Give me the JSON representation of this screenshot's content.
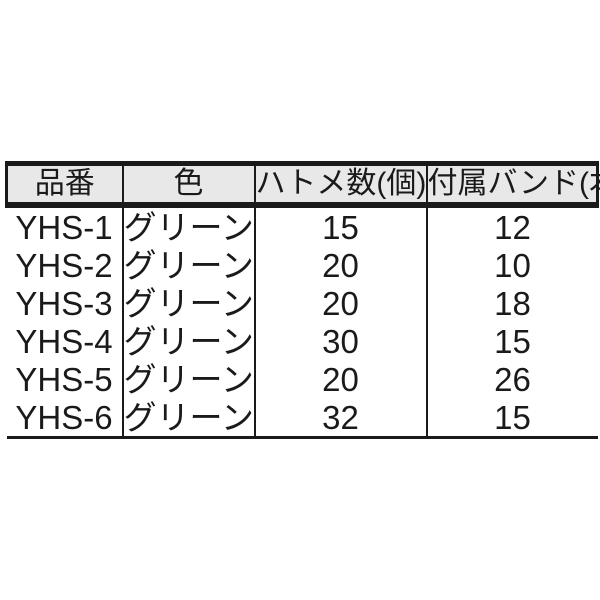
{
  "chart_data": {
    "type": "table",
    "columns": [
      "品番",
      "色",
      "ハトメ数(個)",
      "付属バンド(本)"
    ],
    "rows": [
      [
        "YHS-1",
        "グリーン",
        "15",
        "12"
      ],
      [
        "YHS-2",
        "グリーン",
        "20",
        "10"
      ],
      [
        "YHS-3",
        "グリーン",
        "20",
        "18"
      ],
      [
        "YHS-4",
        "グリーン",
        "30",
        "15"
      ],
      [
        "YHS-5",
        "グリーン",
        "20",
        "26"
      ],
      [
        "YHS-6",
        "グリーン",
        "32",
        "15"
      ]
    ],
    "layout": {
      "header_background": "#e8e8e8",
      "border_color": "#1a1a1a",
      "text_color": "#1a1a1a",
      "page_background": "#ffffff",
      "grid": "columns-only",
      "alignment": "center"
    }
  }
}
